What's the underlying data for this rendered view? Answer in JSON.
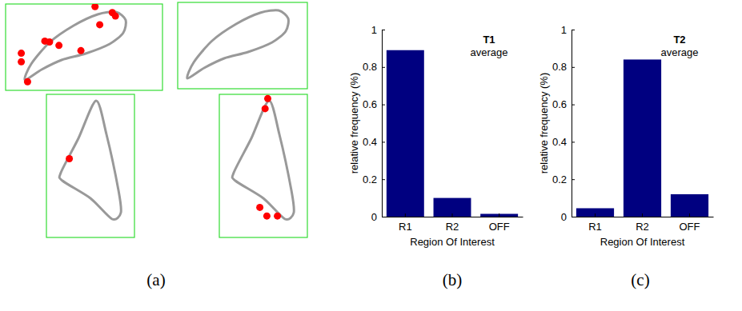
{
  "panel_labels": [
    "(a)",
    "(b)",
    "(c)"
  ],
  "chart_data": [
    {
      "type": "scatter",
      "x": [
        57,
        68,
        70,
        60,
        25,
        28,
        34,
        48,
        10,
        10,
        14
      ],
      "y": [
        97,
        90,
        86,
        76,
        57,
        56,
        52,
        46,
        43,
        33,
        10
      ],
      "xlim": [
        0,
        100
      ],
      "ylim": [
        0,
        100
      ],
      "tick_labels": false,
      "color": "#ff0000",
      "marker": "circle"
    },
    {
      "type": "scatter",
      "x": [
        26
      ],
      "y": [
        55
      ],
      "xlim": [
        0,
        100
      ],
      "ylim": [
        0,
        100
      ],
      "tick_labels": false,
      "color": "#ff0000",
      "marker": "circle"
    },
    {
      "type": "scatter",
      "x": [],
      "y": [],
      "xlim": [
        0,
        100
      ],
      "ylim": [
        0,
        100
      ],
      "tick_labels": false,
      "color": "#ff0000",
      "marker": "circle"
    },
    {
      "type": "scatter",
      "x": [
        55,
        52,
        46,
        54,
        66
      ],
      "y": [
        97,
        90,
        21,
        15,
        15
      ],
      "xlim": [
        0,
        100
      ],
      "ylim": [
        0,
        100
      ],
      "tick_labels": false,
      "color": "#ff0000",
      "marker": "circle"
    },
    {
      "type": "bar",
      "title": "T1",
      "subtitle": "average",
      "x_label": "Region Of Interest",
      "y_label": "relative frequency (%)",
      "categories": [
        "R1",
        "R2",
        "OFF"
      ],
      "values": [
        0.89,
        0.1,
        0.015
      ],
      "color": "#000080",
      "ylim": [
        0,
        1
      ],
      "yticks": [
        0,
        0.2,
        0.4,
        0.6,
        0.8,
        1
      ],
      "grid": false
    },
    {
      "type": "bar",
      "title": "T2",
      "subtitle": "average",
      "x_label": "Region Of Interest",
      "y_label": "relative frequency (%)",
      "categories": [
        "R1",
        "R2",
        "OFF"
      ],
      "values": [
        0.045,
        0.84,
        0.12
      ],
      "color": "#000080",
      "ylim": [
        0,
        1
      ],
      "yticks": [
        0,
        0.2,
        0.4,
        0.6,
        0.8,
        1
      ],
      "grid": false
    }
  ]
}
